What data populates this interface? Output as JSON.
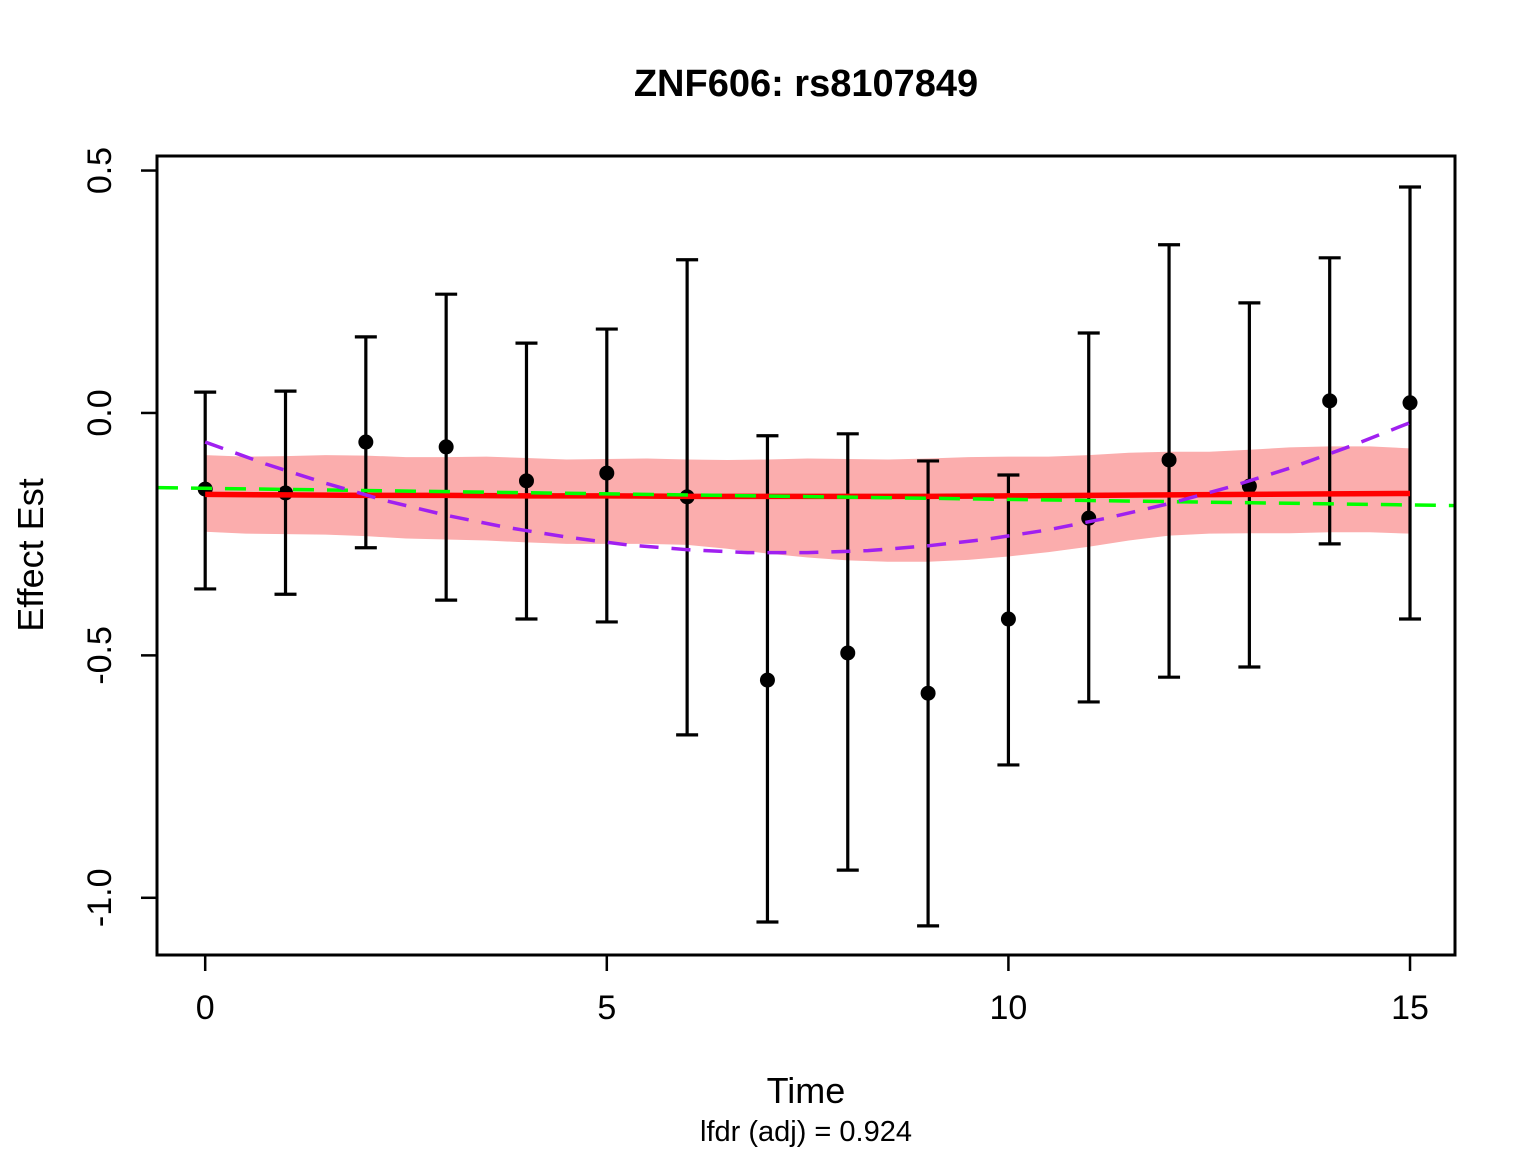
{
  "page": {
    "background": "#ffffff"
  },
  "chart_data": {
    "type": "errorbar-line",
    "title": "ZNF606: rs8107849",
    "xlabel": "Time",
    "ylabel": "Effect Est",
    "subtitle": "lfdr (adj) = 0.924",
    "xlim": [
      -0.6,
      15.56
    ],
    "ylim": [
      -1.118,
      0.53
    ],
    "grid": false,
    "legend": "none",
    "x_ticks": {
      "values": [
        0,
        5,
        10,
        15
      ],
      "labels": [
        "0",
        "5",
        "10",
        "15"
      ]
    },
    "y_ticks": {
      "values": [
        0.5,
        0.0,
        -0.5,
        -1.0
      ],
      "labels": [
        "0.5",
        "0.0",
        "-0.5",
        "-1.0"
      ]
    },
    "points": {
      "color": "#000000",
      "t": [
        0,
        1,
        2,
        3,
        4,
        5,
        6,
        7,
        8,
        9,
        10,
        11,
        12,
        13,
        14,
        15
      ],
      "est": [
        -0.157,
        -0.165,
        -0.06,
        -0.07,
        -0.14,
        -0.124,
        -0.173,
        -0.551,
        -0.495,
        -0.578,
        -0.425,
        -0.217,
        -0.097,
        -0.151,
        0.025,
        0.021
      ],
      "lo": [
        -0.363,
        -0.374,
        -0.278,
        -0.386,
        -0.425,
        -0.431,
        -0.664,
        -1.05,
        -0.943,
        -1.058,
        -0.726,
        -0.596,
        -0.545,
        -0.524,
        -0.27,
        -0.425
      ],
      "hi": [
        0.043,
        0.045,
        0.157,
        0.245,
        0.144,
        0.173,
        0.316,
        -0.047,
        -0.043,
        -0.099,
        -0.128,
        0.165,
        0.347,
        0.227,
        0.32,
        0.466
      ]
    },
    "confidence_band": {
      "color": "#FBADAD",
      "t": [
        0,
        0.5,
        1,
        1.5,
        2,
        2.5,
        3,
        3.5,
        4,
        4.5,
        5,
        5.5,
        6,
        6.5,
        7,
        7.5,
        8,
        8.5,
        9,
        9.5,
        10,
        10.5,
        11,
        11.5,
        12,
        12.5,
        13,
        13.5,
        14,
        14.5,
        15
      ],
      "upper": [
        -0.087,
        -0.09,
        -0.089,
        -0.087,
        -0.088,
        -0.091,
        -0.091,
        -0.09,
        -0.093,
        -0.096,
        -0.095,
        -0.094,
        -0.096,
        -0.097,
        -0.096,
        -0.094,
        -0.095,
        -0.096,
        -0.094,
        -0.091,
        -0.09,
        -0.09,
        -0.087,
        -0.082,
        -0.08,
        -0.08,
        -0.076,
        -0.071,
        -0.069,
        -0.069,
        -0.073
      ],
      "lower": [
        -0.245,
        -0.249,
        -0.25,
        -0.251,
        -0.254,
        -0.259,
        -0.261,
        -0.263,
        -0.267,
        -0.27,
        -0.27,
        -0.27,
        -0.272,
        -0.28,
        -0.29,
        -0.298,
        -0.304,
        -0.307,
        -0.307,
        -0.303,
        -0.296,
        -0.287,
        -0.276,
        -0.263,
        -0.253,
        -0.249,
        -0.248,
        -0.248,
        -0.246,
        -0.246,
        -0.249
      ]
    },
    "fit_line": {
      "color": "#FF0000",
      "style": "solid",
      "t": [
        0,
        1,
        2,
        3,
        4,
        5,
        6,
        7,
        8,
        9,
        10,
        11,
        12,
        13,
        14,
        15
      ],
      "v": [
        -0.168,
        -0.169,
        -0.17,
        -0.17,
        -0.171,
        -0.171,
        -0.172,
        -0.172,
        -0.172,
        -0.172,
        -0.171,
        -0.17,
        -0.169,
        -0.168,
        -0.167,
        -0.166
      ]
    },
    "reference_line": {
      "color": "#00FF00",
      "style": "dashed",
      "t": [
        -0.6,
        15.56
      ],
      "v": [
        -0.154,
        -0.191
      ]
    },
    "trend_line": {
      "color": "#A020F0",
      "style": "dashed",
      "t": [
        0,
        0.75,
        1.5,
        2.25,
        3,
        3.75,
        4.5,
        5.25,
        6,
        6.75,
        7.5,
        8.25,
        9,
        9.75,
        10.5,
        11.25,
        12,
        12.75,
        13.5,
        14.25,
        15
      ],
      "v": [
        -0.06,
        -0.105,
        -0.145,
        -0.181,
        -0.211,
        -0.236,
        -0.256,
        -0.272,
        -0.282,
        -0.288,
        -0.288,
        -0.284,
        -0.274,
        -0.26,
        -0.241,
        -0.216,
        -0.187,
        -0.153,
        -0.114,
        -0.069,
        -0.02
      ]
    }
  }
}
